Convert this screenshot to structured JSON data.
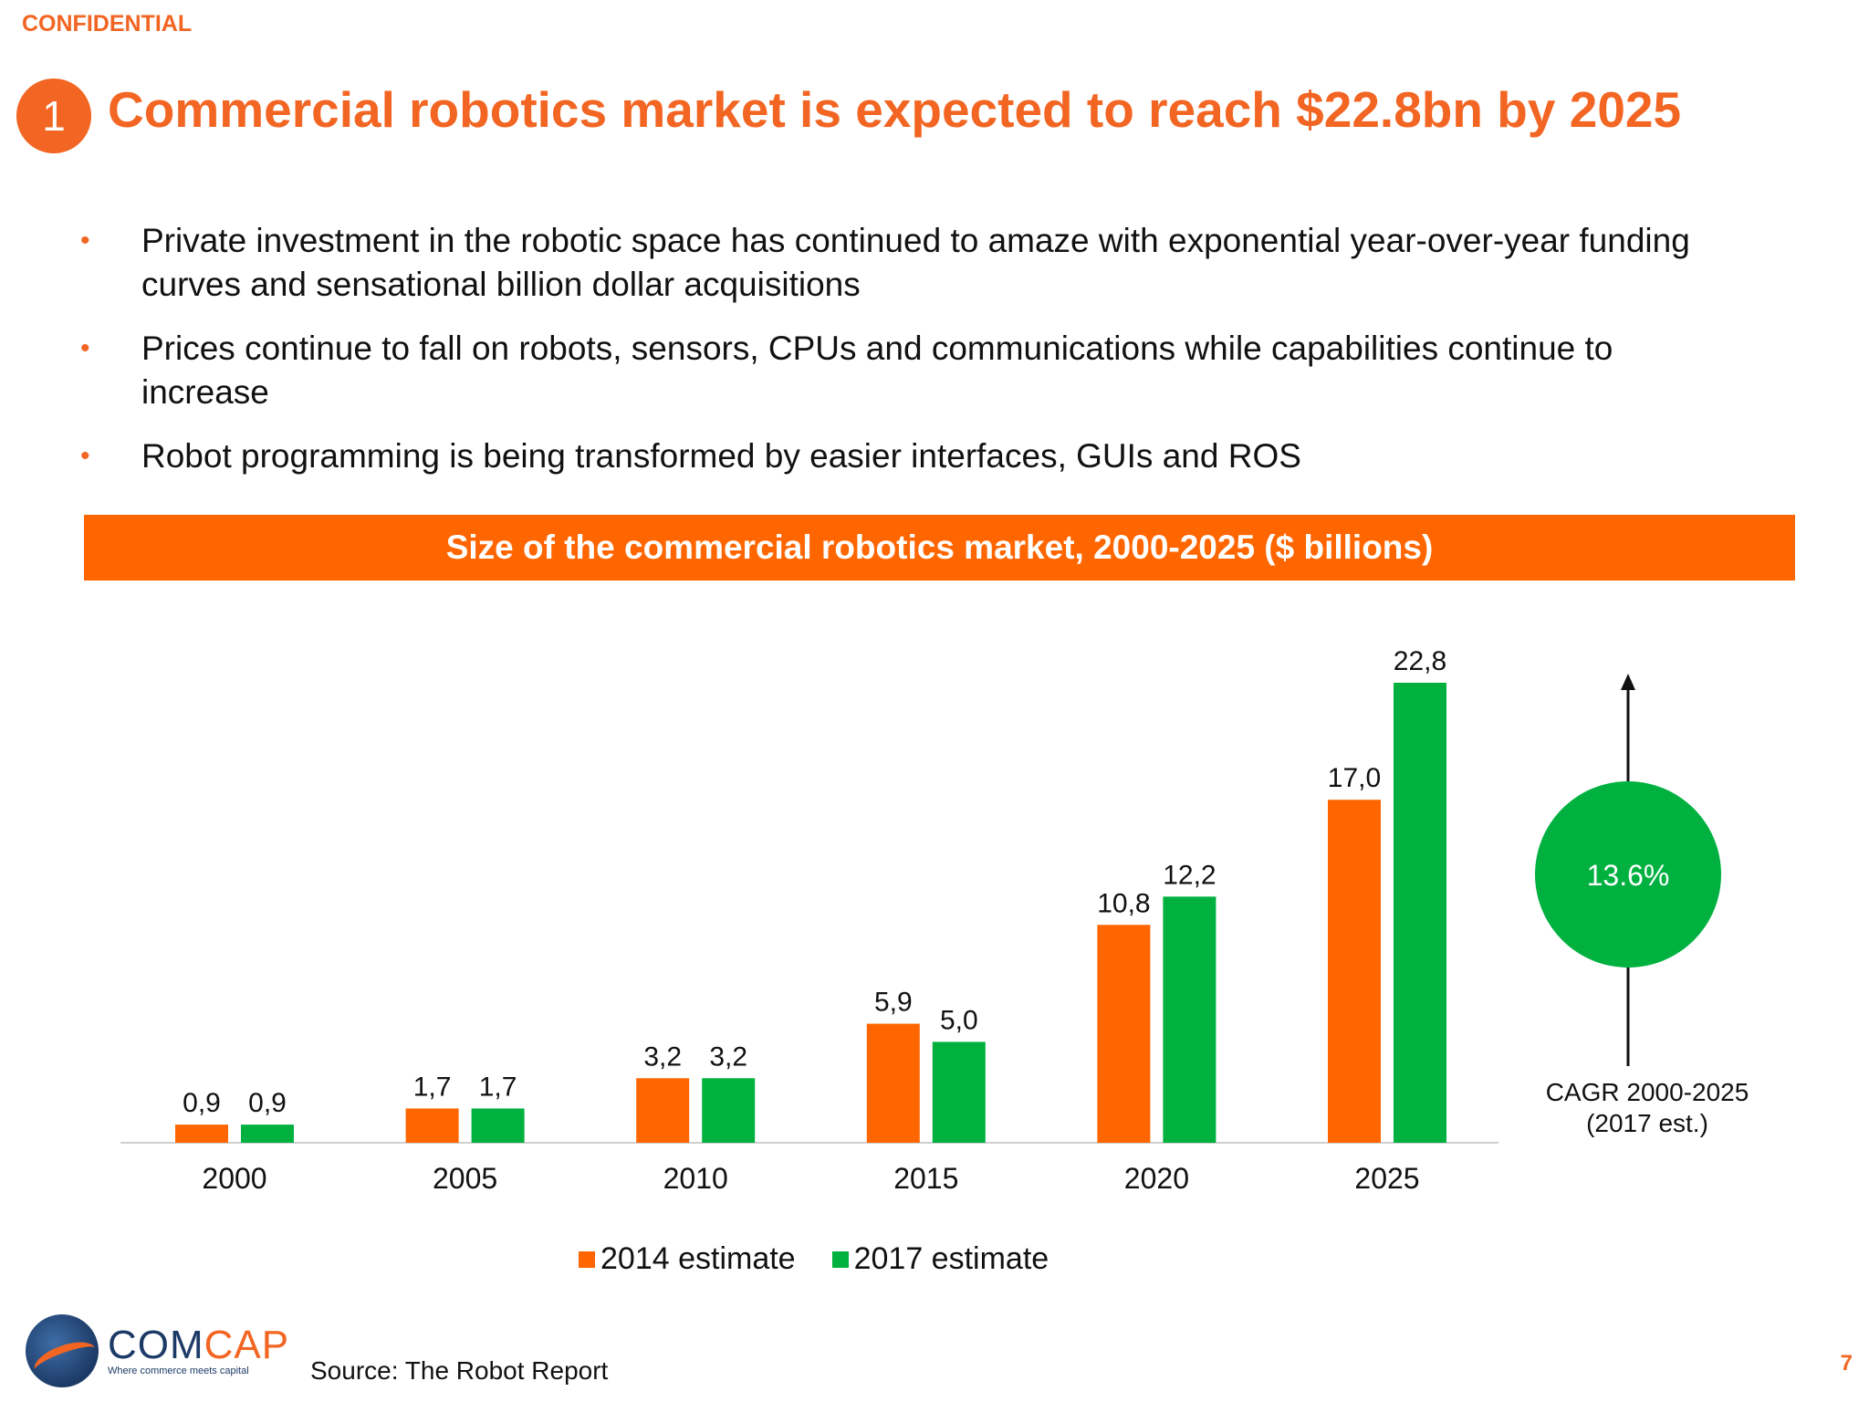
{
  "header": {
    "confidential": "CONFIDENTIAL",
    "slide_badge": "1",
    "title": "Commercial robotics market is expected to reach $22.8bn by 2025"
  },
  "bullets": [
    "Private investment in the robotic space has continued to amaze with exponential year-over-year funding curves and sensational billion dollar acquisitions",
    "Prices continue to fall on robots, sensors, CPUs and communications while capabilities continue to increase",
    "Robot programming is being transformed by easier interfaces, GUIs and ROS"
  ],
  "bullet_marker": "•",
  "colors": {
    "accent": "#f26522",
    "banner": "#ff6600",
    "series_2014": "#ff6600",
    "series_2017": "#00b140"
  },
  "chart_data": {
    "type": "bar",
    "title": "Size of the commercial robotics market, 2000-2025 ($ billions)",
    "categories": [
      "2000",
      "2005",
      "2010",
      "2015",
      "2020",
      "2025"
    ],
    "series": [
      {
        "name": "2014 estimate",
        "values": [
          0.9,
          1.7,
          3.2,
          5.9,
          10.8,
          17.0
        ],
        "labels": [
          "0,9",
          "1,7",
          "3,2",
          "5,9",
          "10,8",
          "17,0"
        ]
      },
      {
        "name": "2017 estimate",
        "values": [
          0.9,
          1.7,
          3.2,
          5.0,
          12.2,
          22.8
        ],
        "labels": [
          "0,9",
          "1,7",
          "3,2",
          "5,0",
          "12,2",
          "22,8"
        ]
      }
    ],
    "ylim": [
      0,
      22.8
    ],
    "grid": false,
    "legend_position": "bottom",
    "cagr": {
      "value": "13.6%",
      "caption_line1": "CAGR 2000-2025",
      "caption_line2": "(2017 est.)"
    }
  },
  "footer": {
    "logo_com": "COM",
    "logo_cap": "CAP",
    "logo_tagline": "Where commerce meets capital",
    "source": "Source: The Robot Report",
    "page_number": "7"
  }
}
